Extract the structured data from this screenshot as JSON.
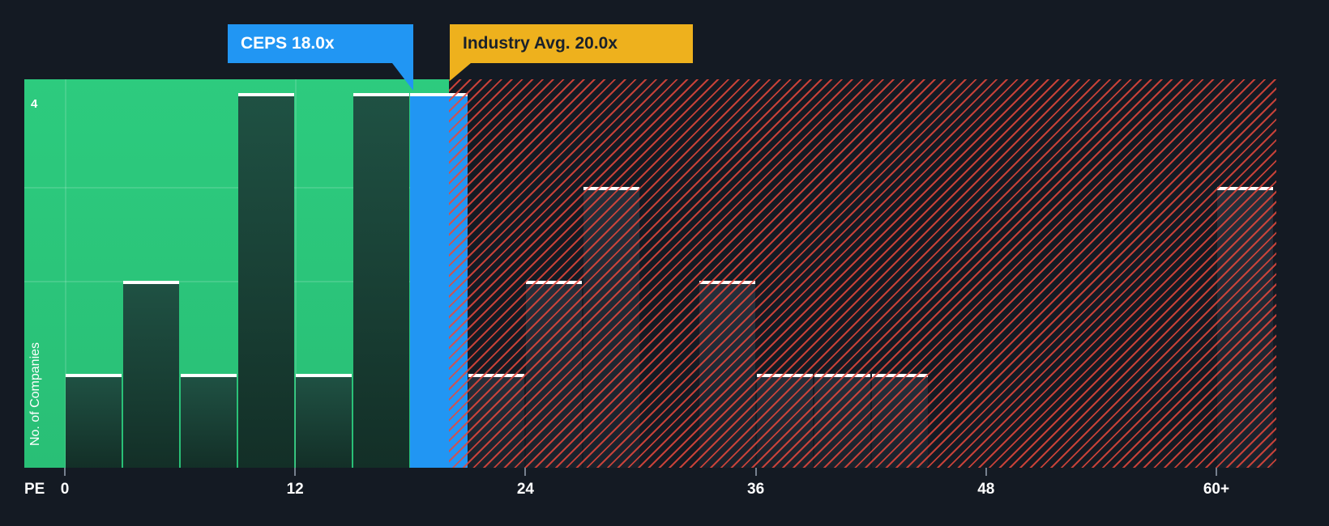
{
  "colors": {
    "background": "#141a23",
    "zone_green": "#2dcb7e",
    "zone_green_deep": "#29bf76",
    "company_blue": "#2196f3",
    "industry_yellow": "#eeb11d",
    "hatch_red": "rgba(229,72,60,0.85)",
    "bar_green_top": "#1f5143",
    "bar_green_bottom": "#132f27",
    "bar_dark_top": "#262f3b",
    "bar_dark_bottom": "#1a212b",
    "grid_green": "rgba(255,255,255,0.13)",
    "tick_gray": "#76808e",
    "text_dark": "#1a212b"
  },
  "chart_data": {
    "type": "bar",
    "xlabel": "PE",
    "ylabel": "No. of Companies",
    "bin_width": 3,
    "xlim": [
      -2.1,
      63.1
    ],
    "ylim": [
      0,
      4.15
    ],
    "y_ticks": [
      {
        "value": 4,
        "label": "4"
      }
    ],
    "x_ticks": [
      {
        "value": 0,
        "label": "0"
      },
      {
        "value": 12,
        "label": "12"
      },
      {
        "value": 24,
        "label": "24"
      },
      {
        "value": 36,
        "label": "36"
      },
      {
        "value": 48,
        "label": "48"
      },
      {
        "value": 60,
        "label": "60+"
      }
    ],
    "grid": {
      "horizontal_counts": [
        2,
        3
      ],
      "vertical_pes": [
        0,
        12
      ]
    },
    "zones": {
      "green_end": 20,
      "hatch_start": 20
    },
    "markers": {
      "company": {
        "label": "CEPS 18.0x",
        "value": 18.0
      },
      "industry": {
        "label": "Industry Avg. 20.0x",
        "value": 20.0
      }
    },
    "bars": [
      {
        "pe_start": 0,
        "count": 1,
        "zone": "below"
      },
      {
        "pe_start": 3,
        "count": 2,
        "zone": "below"
      },
      {
        "pe_start": 6,
        "count": 1,
        "zone": "below"
      },
      {
        "pe_start": 9,
        "count": 4,
        "zone": "below"
      },
      {
        "pe_start": 12,
        "count": 1,
        "zone": "below"
      },
      {
        "pe_start": 15,
        "count": 4,
        "zone": "below"
      },
      {
        "pe_start": 18,
        "count": 4,
        "zone": "company"
      },
      {
        "pe_start": 21,
        "count": 1,
        "zone": "above"
      },
      {
        "pe_start": 24,
        "count": 2,
        "zone": "above"
      },
      {
        "pe_start": 27,
        "count": 3,
        "zone": "above"
      },
      {
        "pe_start": 33,
        "count": 2,
        "zone": "above"
      },
      {
        "pe_start": 36,
        "count": 1,
        "zone": "above"
      },
      {
        "pe_start": 39,
        "count": 1,
        "zone": "above"
      },
      {
        "pe_start": 42,
        "count": 1,
        "zone": "above"
      },
      {
        "pe_start": 60,
        "count": 3,
        "zone": "above"
      }
    ]
  }
}
